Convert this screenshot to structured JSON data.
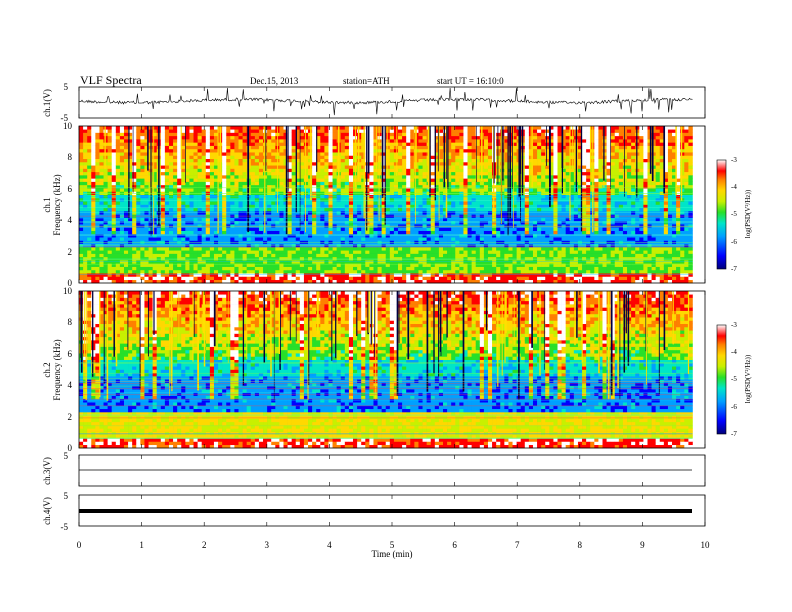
{
  "header": {
    "title": "VLF Spectra",
    "date": "Dec.15, 2013",
    "station": "station=ATH",
    "start": "start UT =  16:10:0"
  },
  "colors": {
    "spectrogram_palette": [
      "#00007a",
      "#0000ff",
      "#00a0ff",
      "#00e5c8",
      "#28e028",
      "#c8f000",
      "#ffd800",
      "#ff8000",
      "#ff0000",
      "#ffffff"
    ]
  },
  "chart_data": [
    {
      "type": "line",
      "ylabel": "ch.1(V)",
      "ylim": [
        -5,
        5
      ],
      "yticks": [
        "5",
        "-5"
      ],
      "description_of_signal": "noisy waveform near 0 V with spikes",
      "xlim": [
        0,
        10
      ]
    },
    {
      "type": "heatmap",
      "ylabel_channel": "ch.1",
      "ylabel": "Frequency (kHz)",
      "ylim": [
        0,
        10
      ],
      "yticks": [
        "0",
        "2",
        "4",
        "6",
        "8",
        "10"
      ],
      "colorbar": {
        "label": "log(PSD(V²/Hz))",
        "range": [
          -7,
          -3
        ],
        "ticks": [
          "-3",
          "-4",
          "-5",
          "-6",
          "-7"
        ]
      },
      "xlim": [
        0,
        10
      ]
    },
    {
      "type": "heatmap",
      "ylabel_channel": "ch.2",
      "ylabel": "Frequency (kHz)",
      "ylim": [
        0,
        10
      ],
      "yticks": [
        "0",
        "2",
        "4",
        "6",
        "8",
        "10"
      ],
      "colorbar": {
        "label": "log(PSD(V²/Hz))",
        "range": [
          -7,
          -3
        ],
        "ticks": [
          "-3",
          "-4",
          "-5",
          "-6",
          "-7"
        ]
      },
      "xlim": [
        0,
        10
      ]
    },
    {
      "type": "line",
      "ylabel": "ch.3(V)",
      "ylim": [
        -5,
        5
      ],
      "yticks": [
        "5"
      ],
      "xlim": [
        0,
        10
      ]
    },
    {
      "type": "line",
      "ylabel": "ch.4(V)",
      "ylim": [
        -5,
        5
      ],
      "yticks": [
        "5",
        "-5"
      ],
      "xlim": [
        0,
        10
      ]
    }
  ],
  "xaxis": {
    "label": "Time (min)",
    "ticks": [
      "0",
      "1",
      "2",
      "3",
      "4",
      "5",
      "6",
      "7",
      "8",
      "9",
      "10"
    ],
    "data_end_min": 9.8
  }
}
